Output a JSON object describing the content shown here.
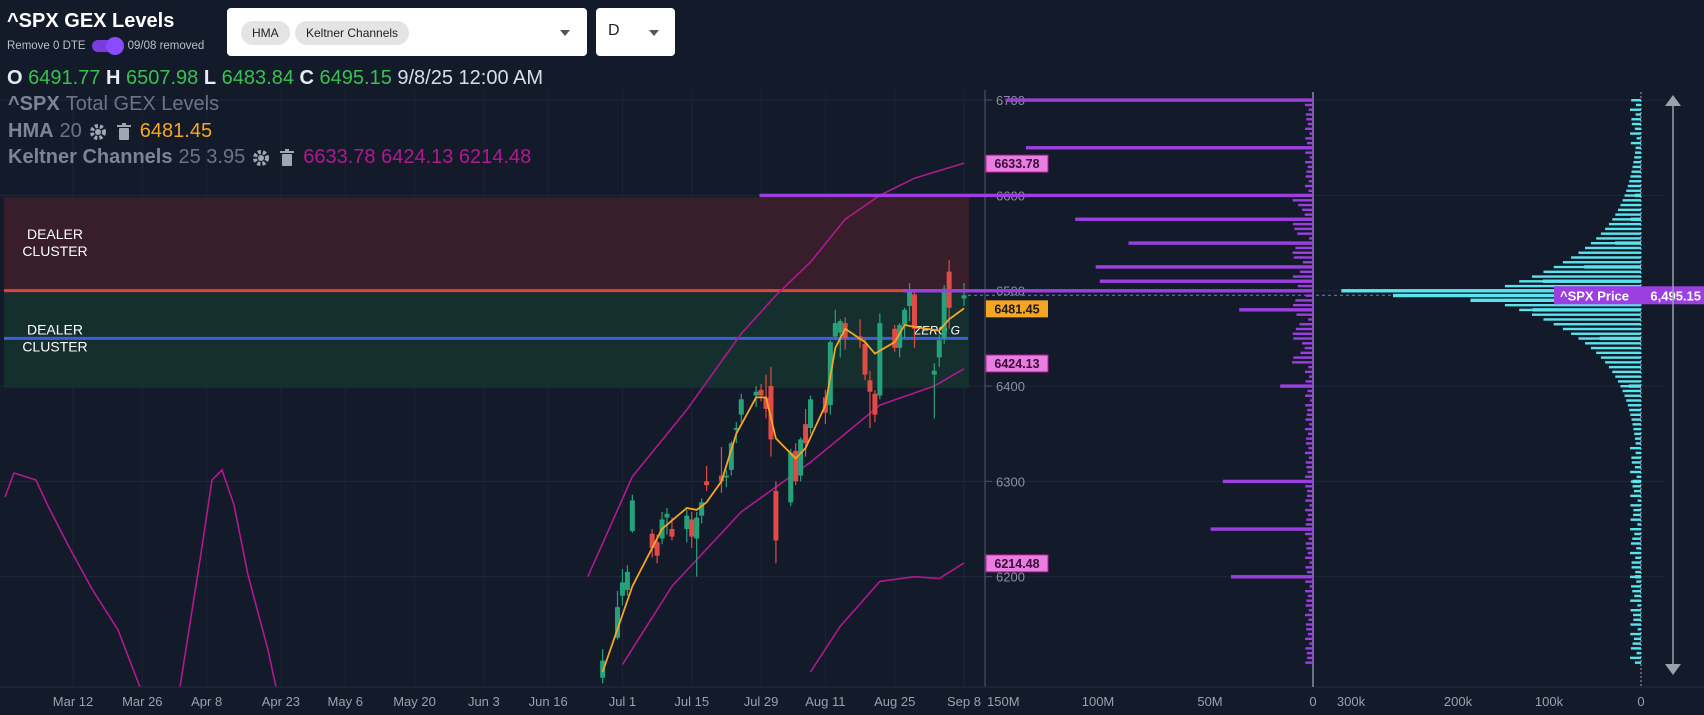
{
  "header": {
    "title": "^SPX GEX Levels",
    "toggle_label": "Remove 0 DTE",
    "toggle_status": "09/08 removed",
    "toggle_on": true
  },
  "indicator_select": {
    "chips": [
      "HMA",
      "Keltner Channels"
    ]
  },
  "interval_select": {
    "value": "D"
  },
  "ohlc": {
    "o_label": "O",
    "o": "6491.77",
    "h_label": "H",
    "h": "6507.98",
    "l_label": "L",
    "l": "6483.84",
    "c_label": "C",
    "c": "6495.15",
    "datetime": "9/8/25 12:00 AM"
  },
  "legend": {
    "series_title": "^SPX",
    "series_subtitle": "Total GEX Levels",
    "hma_name": "HMA",
    "hma_param": "20",
    "hma_value": "6481.45",
    "kc_name": "Keltner Channels",
    "kc_params": "25 3.95",
    "kc_values": "6633.78 6424.13 6214.48"
  },
  "annotations": {
    "dealer_upper": [
      "DEALER",
      "CLUSTER"
    ],
    "dealer_lower": [
      "DEALER",
      "CLUSTER"
    ],
    "zero_gamma": "ZERO G"
  },
  "colors": {
    "background": "#131a2a",
    "candle_up": "#26a27a",
    "candle_down": "#e04b45",
    "hma": "#f5a623",
    "keltner": "#b1198f",
    "gex_purple": "#9c3fe0",
    "gex_cyan": "#5ae4ee",
    "price_tag": "#9c3fe0",
    "dealer_upper_zone": "#3a1e2a",
    "dealer_lower_zone": "#152f2e",
    "resistance_line": "#e2423c",
    "zero_gamma_line": "#3a5fd8"
  },
  "chart_data": [
    {
      "type": "candlestick",
      "title": "^SPX Total GEX Levels",
      "x_ticks": [
        "Mar 12",
        "Mar 26",
        "Apr 8",
        "Apr 23",
        "May 6",
        "May 20",
        "Jun 3",
        "Jun 16",
        "Jul 1",
        "Jul 15",
        "Jul 29",
        "Aug 11",
        "Aug 25",
        "Sep 8"
      ],
      "y_ticks": [
        6200,
        6300,
        6400,
        6500,
        6600,
        6700
      ],
      "ylim": [
        6100,
        6710
      ],
      "grid": true,
      "price_tag": {
        "label": "^SPX Price",
        "value": "6,495.15"
      },
      "level_tags": [
        "6633.78",
        "6481.45",
        "6424.13",
        "6214.48"
      ],
      "candles": [
        {
          "date": "Jun 27",
          "o": 6094,
          "h": 6124,
          "l": 6088,
          "c": 6112
        },
        {
          "date": "Jun 30",
          "o": 6136,
          "h": 6185,
          "l": 6134,
          "c": 6168
        },
        {
          "date": "Jul 1",
          "o": 6180,
          "h": 6208,
          "l": 6170,
          "c": 6194
        },
        {
          "date": "Jul 2",
          "o": 6186,
          "h": 6212,
          "l": 6180,
          "c": 6205
        },
        {
          "date": "Jul 3",
          "o": 6248,
          "h": 6286,
          "l": 6246,
          "c": 6280
        },
        {
          "date": "Jul 7",
          "o": 6245,
          "h": 6250,
          "l": 6220,
          "c": 6230
        },
        {
          "date": "Jul 8",
          "o": 6236,
          "h": 6244,
          "l": 6214,
          "c": 6222
        },
        {
          "date": "Jul 9",
          "o": 6240,
          "h": 6268,
          "l": 6234,
          "c": 6260
        },
        {
          "date": "Jul 10",
          "o": 6262,
          "h": 6272,
          "l": 6244,
          "c": 6266
        },
        {
          "date": "Jul 11",
          "o": 6250,
          "h": 6262,
          "l": 6238,
          "c": 6242
        },
        {
          "date": "Jul 14",
          "o": 6250,
          "h": 6270,
          "l": 6236,
          "c": 6264
        },
        {
          "date": "Jul 15",
          "o": 6260,
          "h": 6268,
          "l": 6230,
          "c": 6242
        },
        {
          "date": "Jul 16",
          "o": 6240,
          "h": 6268,
          "l": 6200,
          "c": 6262
        },
        {
          "date": "Jul 17",
          "o": 6264,
          "h": 6282,
          "l": 6256,
          "c": 6278
        },
        {
          "date": "Jul 18",
          "o": 6300,
          "h": 6316,
          "l": 6290,
          "c": 6296
        },
        {
          "date": "Jul 21",
          "o": 6306,
          "h": 6336,
          "l": 6288,
          "c": 6300
        },
        {
          "date": "Jul 22",
          "o": 6304,
          "h": 6312,
          "l": 6294,
          "c": 6306
        },
        {
          "date": "Jul 23",
          "o": 6312,
          "h": 6342,
          "l": 6306,
          "c": 6340
        },
        {
          "date": "Jul 24",
          "o": 6354,
          "h": 6362,
          "l": 6340,
          "c": 6356
        },
        {
          "date": "Jul 25",
          "o": 6370,
          "h": 6392,
          "l": 6362,
          "c": 6386
        },
        {
          "date": "Jul 28",
          "o": 6390,
          "h": 6400,
          "l": 6378,
          "c": 6394
        },
        {
          "date": "Jul 29",
          "o": 6396,
          "h": 6402,
          "l": 6384,
          "c": 6390
        },
        {
          "date": "Jul 30",
          "o": 6388,
          "h": 6412,
          "l": 6366,
          "c": 6376
        },
        {
          "date": "Jul 31",
          "o": 6400,
          "h": 6420,
          "l": 6326,
          "c": 6344
        },
        {
          "date": "Aug 1",
          "o": 6290,
          "h": 6300,
          "l": 6214,
          "c": 6238
        },
        {
          "date": "Aug 4",
          "o": 6278,
          "h": 6334,
          "l": 6274,
          "c": 6330
        },
        {
          "date": "Aug 5",
          "o": 6332,
          "h": 6340,
          "l": 6296,
          "c": 6300
        },
        {
          "date": "Aug 6",
          "o": 6306,
          "h": 6346,
          "l": 6300,
          "c": 6344
        },
        {
          "date": "Aug 7",
          "o": 6360,
          "h": 6376,
          "l": 6326,
          "c": 6340
        },
        {
          "date": "Aug 8",
          "o": 6356,
          "h": 6390,
          "l": 6350,
          "c": 6386
        },
        {
          "date": "Aug 11",
          "o": 6388,
          "h": 6396,
          "l": 6360,
          "c": 6372
        },
        {
          "date": "Aug 12",
          "o": 6380,
          "h": 6448,
          "l": 6370,
          "c": 6446
        },
        {
          "date": "Aug 13",
          "o": 6452,
          "h": 6480,
          "l": 6448,
          "c": 6466
        },
        {
          "date": "Aug 14",
          "o": 6456,
          "h": 6470,
          "l": 6430,
          "c": 6468
        },
        {
          "date": "Aug 15",
          "o": 6466,
          "h": 6472,
          "l": 6438,
          "c": 6450
        },
        {
          "date": "Aug 18",
          "o": 6452,
          "h": 6470,
          "l": 6440,
          "c": 6448
        },
        {
          "date": "Aug 19",
          "o": 6444,
          "h": 6450,
          "l": 6406,
          "c": 6412
        },
        {
          "date": "Aug 20",
          "o": 6406,
          "h": 6416,
          "l": 6356,
          "c": 6394
        },
        {
          "date": "Aug 21",
          "o": 6392,
          "h": 6396,
          "l": 6362,
          "c": 6370
        },
        {
          "date": "Aug 22",
          "o": 6390,
          "h": 6476,
          "l": 6386,
          "c": 6466
        },
        {
          "date": "Aug 25",
          "o": 6460,
          "h": 6464,
          "l": 6436,
          "c": 6440
        },
        {
          "date": "Aug 26",
          "o": 6440,
          "h": 6466,
          "l": 6430,
          "c": 6464
        },
        {
          "date": "Aug 27",
          "o": 6464,
          "h": 6482,
          "l": 6450,
          "c": 6480
        },
        {
          "date": "Aug 28",
          "o": 6484,
          "h": 6508,
          "l": 6468,
          "c": 6500
        },
        {
          "date": "Aug 29",
          "o": 6496,
          "h": 6500,
          "l": 6440,
          "c": 6460
        },
        {
          "date": "Sep 2",
          "o": 6412,
          "h": 6424,
          "l": 6366,
          "c": 6416
        },
        {
          "date": "Sep 3",
          "o": 6430,
          "h": 6454,
          "l": 6420,
          "c": 6448
        },
        {
          "date": "Sep 4",
          "o": 6450,
          "h": 6506,
          "l": 6444,
          "c": 6502
        },
        {
          "date": "Sep 5",
          "o": 6520,
          "h": 6532,
          "l": 6460,
          "c": 6482
        },
        {
          "date": "Sep 8",
          "o": 6491.77,
          "h": 6507.98,
          "l": 6483.84,
          "c": 6495.15
        }
      ],
      "hma_20": [
        {
          "date": "Jun 27",
          "v": 6100
        },
        {
          "date": "Jul 3",
          "v": 6190
        },
        {
          "date": "Jul 9",
          "v": 6250
        },
        {
          "date": "Jul 14",
          "v": 6272
        },
        {
          "date": "Jul 16",
          "v": 6270
        },
        {
          "date": "Jul 18",
          "v": 6278
        },
        {
          "date": "Jul 21",
          "v": 6300
        },
        {
          "date": "Jul 24",
          "v": 6350
        },
        {
          "date": "Jul 28",
          "v": 6388
        },
        {
          "date": "Jul 30",
          "v": 6388
        },
        {
          "date": "Aug 1",
          "v": 6345
        },
        {
          "date": "Aug 5",
          "v": 6324
        },
        {
          "date": "Aug 7",
          "v": 6335
        },
        {
          "date": "Aug 11",
          "v": 6380
        },
        {
          "date": "Aug 13",
          "v": 6440
        },
        {
          "date": "Aug 15",
          "v": 6460
        },
        {
          "date": "Aug 19",
          "v": 6446
        },
        {
          "date": "Aug 21",
          "v": 6434
        },
        {
          "date": "Aug 25",
          "v": 6446
        },
        {
          "date": "Aug 27",
          "v": 6464
        },
        {
          "date": "Aug 29",
          "v": 6462
        },
        {
          "date": "Sep 3",
          "v": 6458
        },
        {
          "date": "Sep 5",
          "v": 6470
        },
        {
          "date": "Sep 8",
          "v": 6481.45
        }
      ],
      "keltner_upper": [
        {
          "date": "Jun 24",
          "v": 6200
        },
        {
          "date": "Jul 3",
          "v": 6305
        },
        {
          "date": "Jul 14",
          "v": 6375
        },
        {
          "date": "Jul 25",
          "v": 6455
        },
        {
          "date": "Aug 1",
          "v": 6495
        },
        {
          "date": "Aug 8",
          "v": 6530
        },
        {
          "date": "Aug 15",
          "v": 6575
        },
        {
          "date": "Aug 22",
          "v": 6600
        },
        {
          "date": "Aug 29",
          "v": 6618
        },
        {
          "date": "Sep 8",
          "v": 6633.78
        }
      ],
      "keltner_mid": [
        {
          "date": "Jul 28",
          "v": 6400
        },
        {
          "date": "Aug 4",
          "v": 6424
        },
        {
          "date": "Aug 8",
          "v": 6440
        },
        {
          "date": "Aug 11",
          "v": 6460
        },
        {
          "date": "Aug 18",
          "v": 6498
        },
        {
          "date": "Aug 25",
          "v": 6498
        },
        {
          "date": "Sep 8",
          "v": 6424.13
        }
      ],
      "keltner_lower": [
        {
          "date": "Jul 1",
          "v": 6110
        },
        {
          "date": "Jul 11",
          "v": 6200
        },
        {
          "date": "Jul 25",
          "v": 6285
        },
        {
          "date": "Aug 8",
          "v": 6335
        },
        {
          "date": "Aug 22",
          "v": 6390
        },
        {
          "date": "Sep 8",
          "v": 6214.48
        }
      ],
      "dealer_zones": [
        {
          "label": "DEALER CLUSTER",
          "from": 6500,
          "to": 6598
        },
        {
          "label": "DEALER CLUSTER",
          "from": 6398,
          "to": 6500
        }
      ],
      "resistance_level": 6500,
      "zero_gamma_level": 6450
    },
    {
      "type": "bar",
      "orientation": "horizontal",
      "title": "",
      "x_ticks": [
        "150M",
        "100M",
        "50M",
        "0"
      ],
      "series": [
        {
          "name": "",
          "color": "#9c3fe0",
          "strikes": [
            6700,
            6650,
            6600,
            6575,
            6550,
            6525,
            6510,
            6500,
            6480,
            6400,
            6300,
            6250,
            6200
          ],
          "values": [
            75,
            70,
            135,
            58,
            45,
            53,
            52,
            100,
            18,
            8,
            22,
            25,
            20
          ]
        }
      ]
    },
    {
      "type": "bar",
      "orientation": "horizontal",
      "title": "",
      "x_ticks": [
        "300k",
        "200k",
        "100k",
        "0"
      ],
      "series": [
        {
          "name": "",
          "color": "#5ae4ee",
          "strikes": [
            6600,
            6575,
            6550,
            6525,
            6510,
            6500,
            6495,
            6490,
            6480,
            6450,
            6400,
            6300,
            6200
          ],
          "values": [
            6,
            10,
            25,
            55,
            95,
            290,
            240,
            165,
            105,
            40,
            12,
            8,
            6
          ]
        }
      ]
    }
  ]
}
